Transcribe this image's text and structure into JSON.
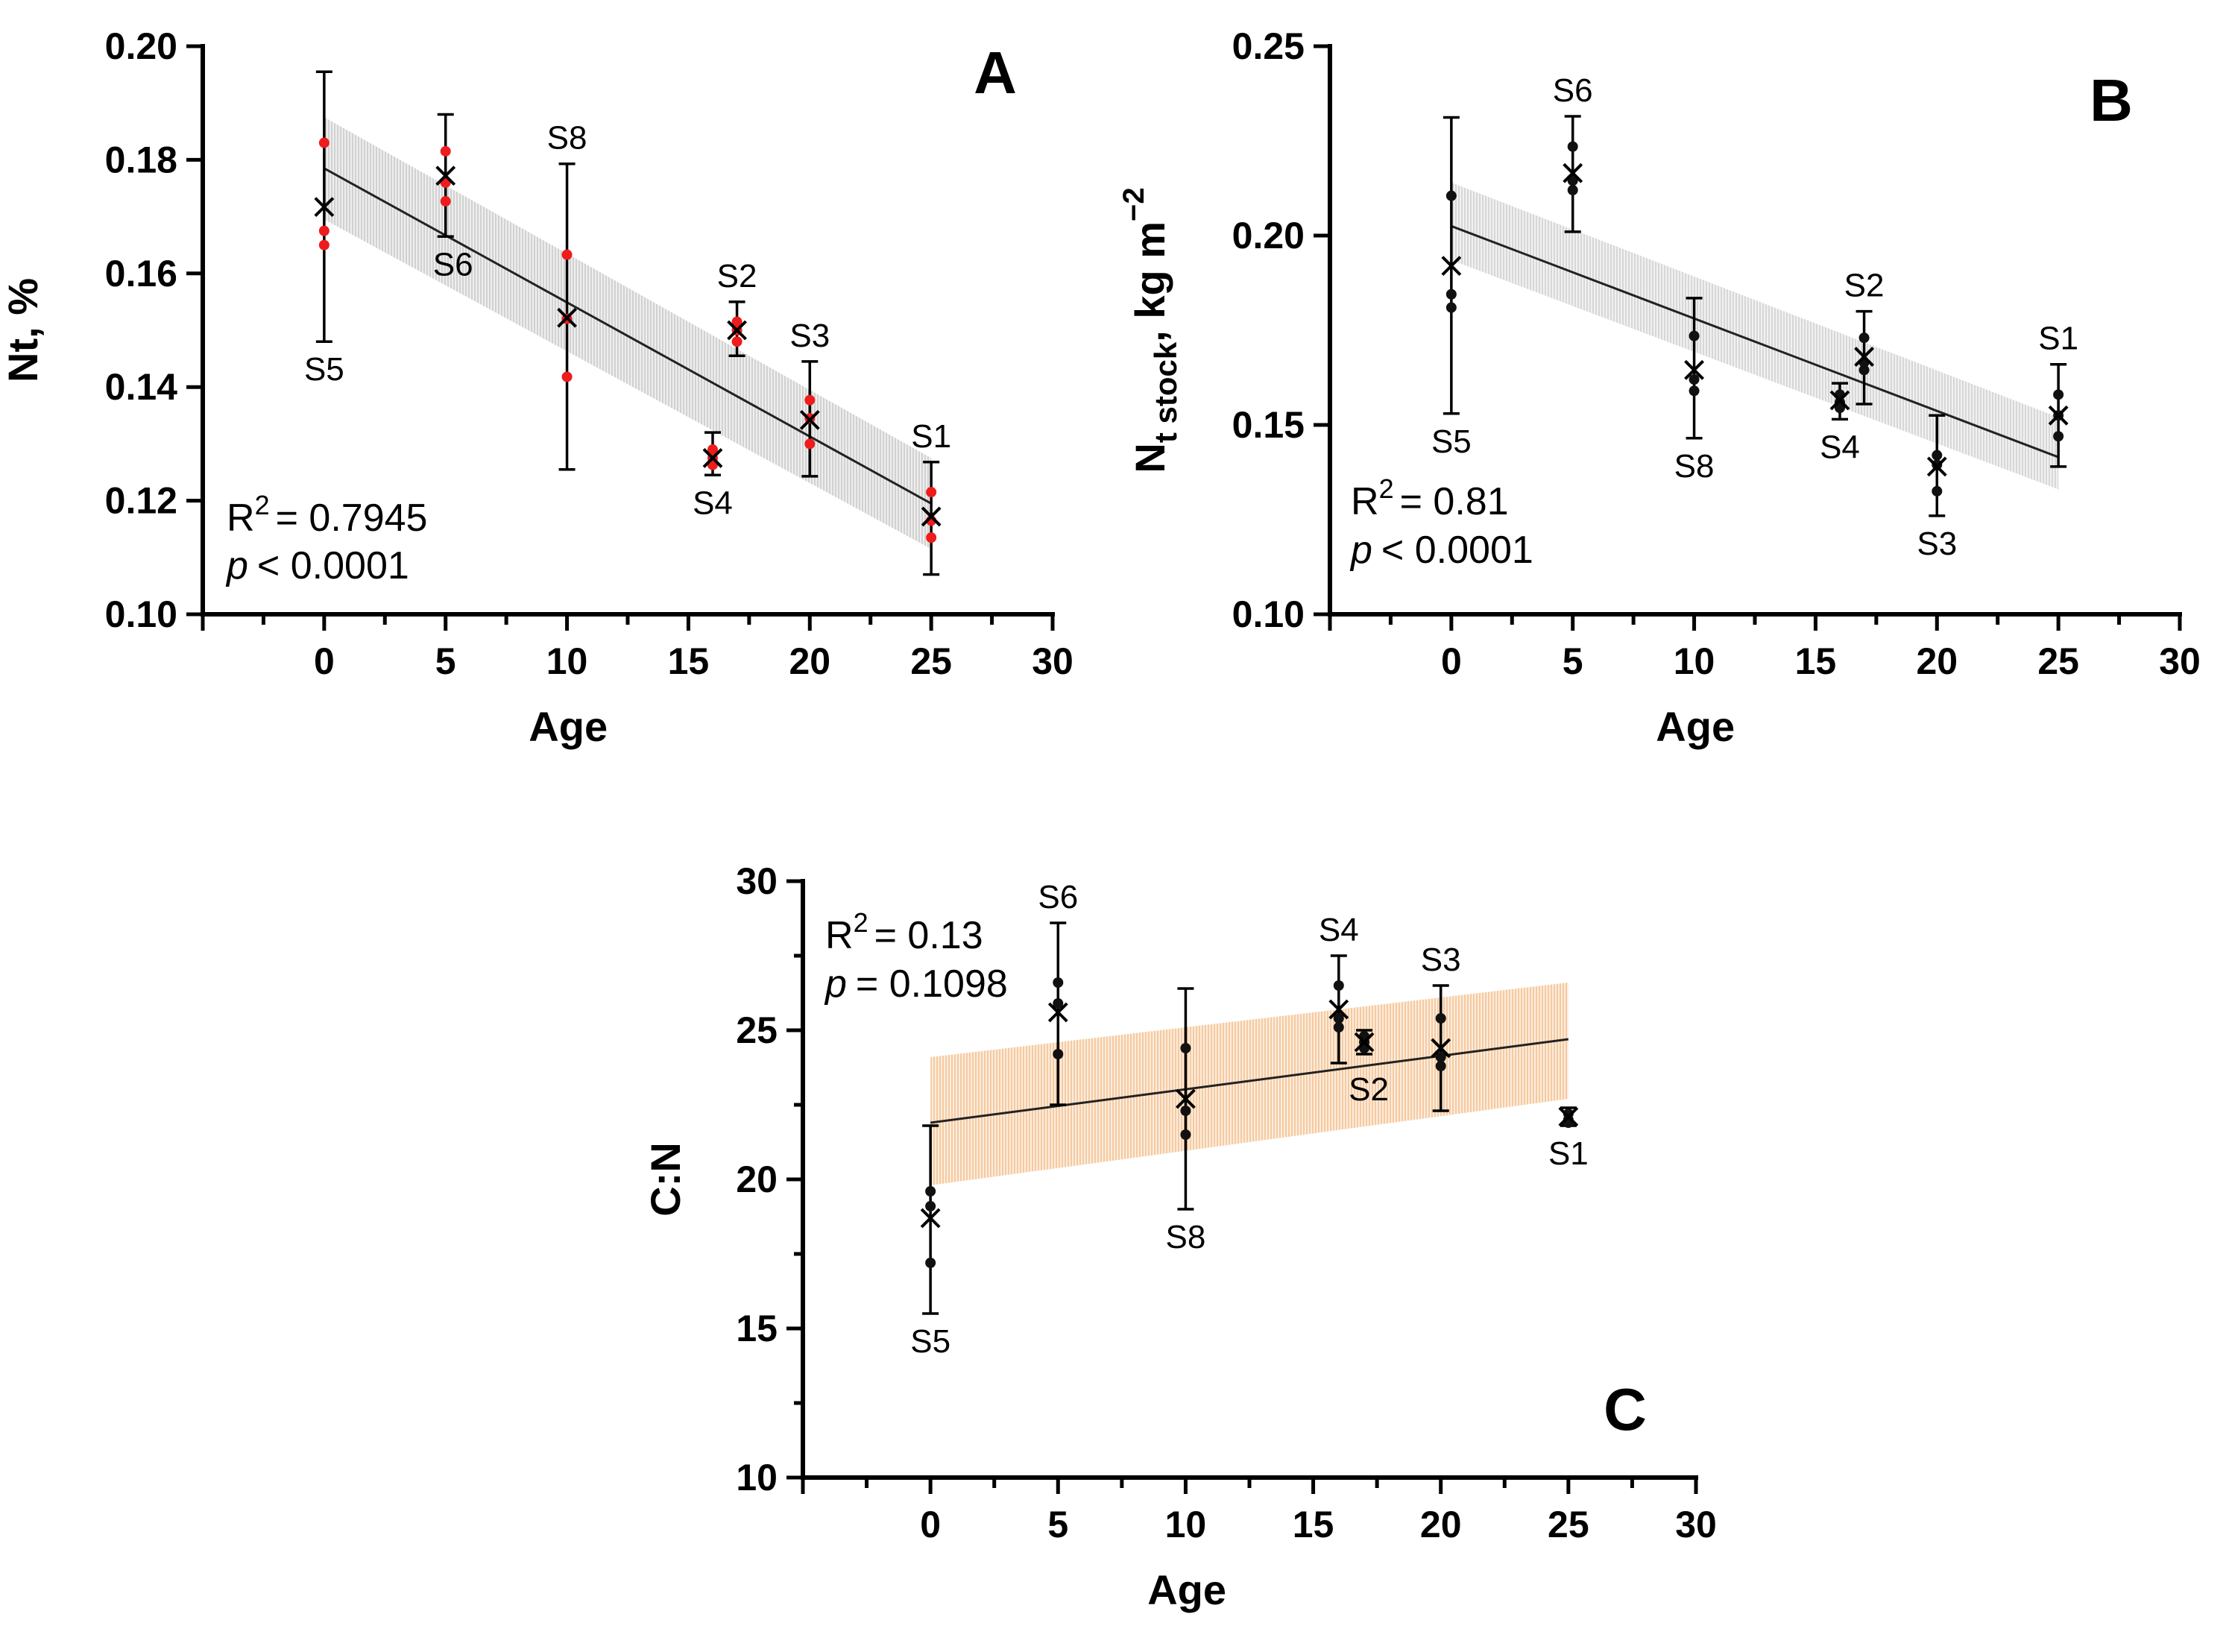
{
  "chart_data": [
    {
      "panel": "A",
      "type": "scatter",
      "xlabel": "Age",
      "ylabel": "Nt, %",
      "xlim": [
        -5,
        30
      ],
      "ylim": [
        0.1,
        0.2
      ],
      "xticks": [
        "0",
        "5",
        "10",
        "15",
        "20",
        "25",
        "30"
      ],
      "yticks": [
        "0.10",
        "0.12",
        "0.14",
        "0.16",
        "0.18",
        "0.20"
      ],
      "stats": {
        "r2_prefix": "R",
        "r2_sup": "2",
        "r2_value": "= 0.7945",
        "p_symbol": "p",
        "p_value": "< 0.0001"
      },
      "point_color": "#ee1c1c",
      "band_color": "#cfcfcf",
      "regression": {
        "x0": 0,
        "y0": 0.1785,
        "x1": 25,
        "y1": 0.1195
      },
      "band": {
        "lo0": 0.1695,
        "hi0": 0.1875,
        "lo1": 0.1115,
        "hi1": 0.1275
      },
      "sites": [
        {
          "label": "S5",
          "age": 0,
          "mean": 0.1717,
          "err_low": 0.148,
          "err_high": 0.1955,
          "points": [
            0.183,
            0.1675,
            0.165
          ],
          "label_pos": "below"
        },
        {
          "label": "S6",
          "age": 5,
          "mean": 0.1772,
          "err_low": 0.1665,
          "err_high": 0.188,
          "points": [
            0.1815,
            0.176,
            0.1727
          ],
          "label_pos": "below"
        },
        {
          "label": "S8",
          "age": 10,
          "mean": 0.1522,
          "err_low": 0.1255,
          "err_high": 0.1793,
          "points": [
            0.1633,
            0.152,
            0.1418
          ],
          "label_pos": "above"
        },
        {
          "label": "S4",
          "age": 16,
          "mean": 0.1275,
          "err_low": 0.1245,
          "err_high": 0.132,
          "points": [
            0.129,
            0.1275,
            0.1263
          ],
          "label_pos": "below"
        },
        {
          "label": "S2",
          "age": 17,
          "mean": 0.15,
          "err_low": 0.1455,
          "err_high": 0.155,
          "points": [
            0.1515,
            0.15,
            0.148
          ],
          "label_pos": "above"
        },
        {
          "label": "S3",
          "age": 20,
          "mean": 0.1342,
          "err_low": 0.1243,
          "err_high": 0.1445,
          "points": [
            0.1377,
            0.1345,
            0.13
          ],
          "label_pos": "above"
        },
        {
          "label": "S1",
          "age": 25,
          "mean": 0.1172,
          "err_low": 0.107,
          "err_high": 0.1268,
          "points": [
            0.1215,
            0.1165,
            0.1135
          ],
          "label_pos": "above"
        }
      ]
    },
    {
      "panel": "B",
      "type": "scatter",
      "xlabel": "Age",
      "ylabel_main": "N",
      "ylabel_sub": "t stock",
      "ylabel_unit": ", kg m",
      "ylabel_sup": "−2",
      "xlim": [
        -5,
        30
      ],
      "ylim": [
        0.1,
        0.25
      ],
      "xticks": [
        "0",
        "5",
        "10",
        "15",
        "20",
        "25",
        "30"
      ],
      "yticks": [
        "0.10",
        "0.15",
        "0.20",
        "0.25"
      ],
      "stats": {
        "r2_prefix": "R",
        "r2_sup": "2",
        "r2_value": "= 0.81",
        "p_symbol": "p",
        "p_value": "< 0.0001"
      },
      "point_color": "#111111",
      "band_color": "#d5d5d5",
      "regression": {
        "x0": 0,
        "y0": 0.2025,
        "x1": 25,
        "y1": 0.1415
      },
      "band": {
        "lo0": 0.1935,
        "hi0": 0.214,
        "lo1": 0.133,
        "hi1": 0.152
      },
      "sites": [
        {
          "label": "S5",
          "age": 0,
          "mean": 0.192,
          "err_low": 0.153,
          "err_high": 0.2312,
          "points": [
            0.2105,
            0.1845,
            0.181
          ],
          "label_pos": "below"
        },
        {
          "label": "S6",
          "age": 5,
          "mean": 0.2165,
          "err_low": 0.201,
          "err_high": 0.2315,
          "points": [
            0.2235,
            0.2145,
            0.212
          ],
          "label_pos": "above"
        },
        {
          "label": "S8",
          "age": 10,
          "mean": 0.1645,
          "err_low": 0.1465,
          "err_high": 0.1835,
          "points": [
            0.1735,
            0.162,
            0.159
          ],
          "label_pos": "below"
        },
        {
          "label": "S4",
          "age": 16,
          "mean": 0.1565,
          "err_low": 0.1515,
          "err_high": 0.161,
          "points": [
            0.158,
            0.156,
            0.1545
          ],
          "label_pos": "below"
        },
        {
          "label": "S2",
          "age": 17,
          "mean": 0.168,
          "err_low": 0.1555,
          "err_high": 0.18,
          "points": [
            0.173,
            0.1665,
            0.1645
          ],
          "label_pos": "above"
        },
        {
          "label": "S3",
          "age": 20,
          "mean": 0.139,
          "err_low": 0.126,
          "err_high": 0.1525,
          "points": [
            0.142,
            0.1395,
            0.1325
          ],
          "label_pos": "below"
        },
        {
          "label": "S1",
          "age": 25,
          "mean": 0.1525,
          "err_low": 0.139,
          "err_high": 0.166,
          "points": [
            0.158,
            0.1525,
            0.147
          ],
          "label_pos": "above"
        }
      ]
    },
    {
      "panel": "C",
      "type": "scatter",
      "xlabel": "Age",
      "ylabel": "C:N",
      "xlim": [
        -5,
        30
      ],
      "ylim": [
        10,
        30
      ],
      "xticks": [
        "0",
        "5",
        "10",
        "15",
        "20",
        "25",
        "30"
      ],
      "yticks": [
        "10",
        "15",
        "20",
        "25",
        "30"
      ],
      "stats": {
        "r2_prefix": "R",
        "r2_sup": "2",
        "r2_value": "= 0.13",
        "p_symbol": "p",
        "p_value": "= 0.1098"
      },
      "point_color": "#111111",
      "band_color": "#f6c79b",
      "regression": {
        "x0": 0,
        "y0": 21.9,
        "x1": 25,
        "y1": 24.7
      },
      "band": {
        "lo0": 19.8,
        "hi0": 24.1,
        "lo1": 22.7,
        "hi1": 26.6
      },
      "sites": [
        {
          "label": "S5",
          "age": 0,
          "mean": 18.7,
          "err_low": 15.5,
          "err_high": 21.8,
          "points": [
            19.6,
            19.1,
            17.2
          ],
          "label_pos": "below"
        },
        {
          "label": "S6",
          "age": 5,
          "mean": 25.6,
          "err_low": 22.5,
          "err_high": 28.6,
          "points": [
            26.6,
            25.9,
            24.2
          ],
          "label_pos": "above"
        },
        {
          "label": "S8",
          "age": 10,
          "mean": 22.7,
          "err_low": 19.0,
          "err_high": 26.4,
          "points": [
            24.4,
            22.3,
            21.5
          ],
          "label_pos": "below"
        },
        {
          "label": "S4",
          "age": 16,
          "mean": 25.7,
          "err_low": 23.9,
          "err_high": 27.5,
          "points": [
            26.5,
            25.4,
            25.1
          ],
          "label_pos": "above"
        },
        {
          "label": "S2",
          "age": 17,
          "mean": 24.6,
          "err_low": 24.2,
          "err_high": 25.0,
          "points": [
            24.8,
            24.6,
            24.4
          ],
          "label_pos": "below"
        },
        {
          "label": "S3",
          "age": 20,
          "mean": 24.4,
          "err_low": 22.3,
          "err_high": 26.5,
          "points": [
            25.4,
            24.1,
            23.8
          ],
          "label_pos": "above"
        },
        {
          "label": "S1",
          "age": 25,
          "mean": 22.1,
          "err_low": 21.8,
          "err_high": 22.4,
          "points": [
            22.2,
            22.0,
            21.9
          ],
          "label_pos": "below"
        }
      ]
    }
  ]
}
